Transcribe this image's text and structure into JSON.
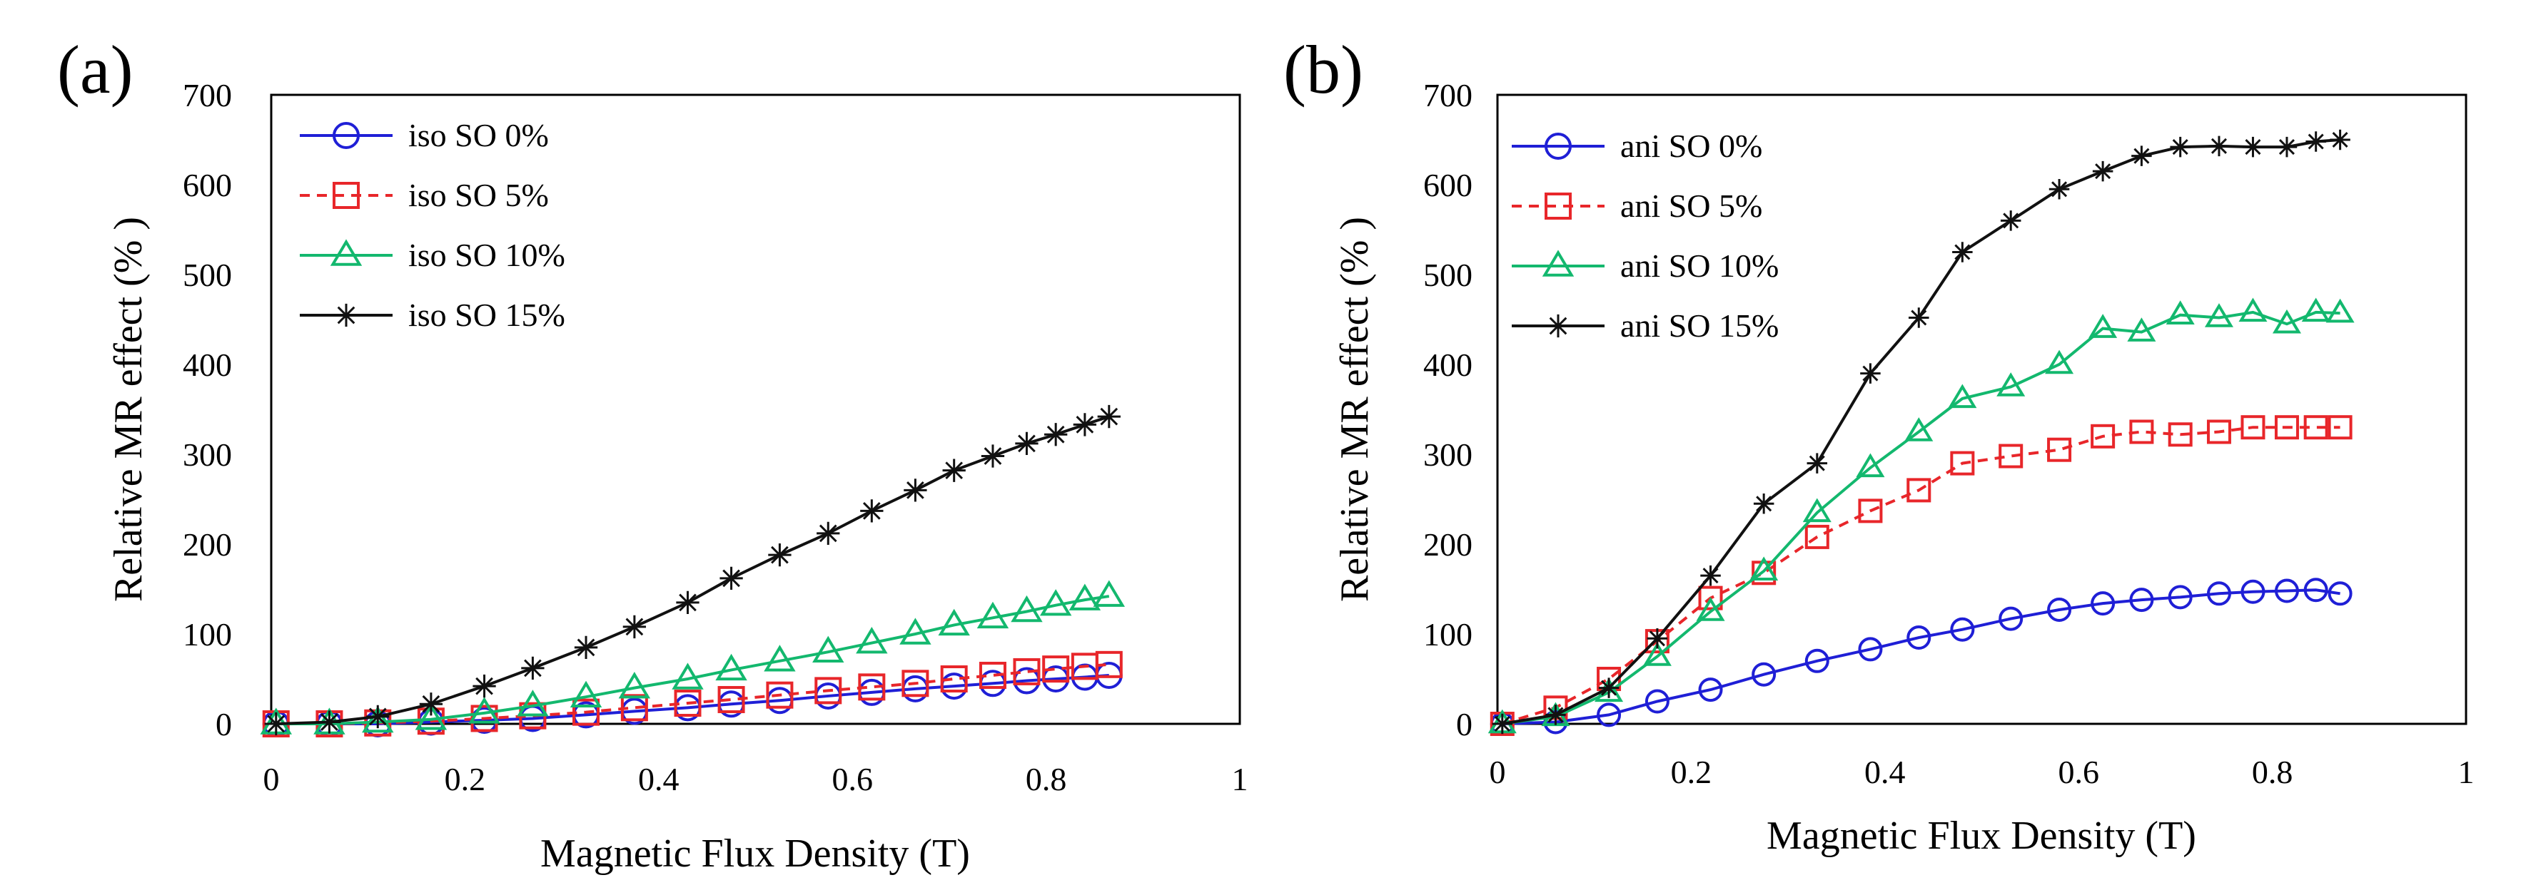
{
  "chart_data": [
    {
      "type": "line",
      "panel_label": "(a)",
      "xlabel": "Magnetic Flux Density (T)",
      "ylabel": "Relative MR effect (% )",
      "xlim": [
        0,
        1
      ],
      "ylim": [
        0,
        700
      ],
      "xticks": [
        "0",
        "0.2",
        "0.4",
        "0.6",
        "0.8",
        "1"
      ],
      "yticks": [
        "0",
        "100",
        "200",
        "300",
        "400",
        "500",
        "600",
        "700"
      ],
      "grid": false,
      "legend_position": "top-left",
      "series": [
        {
          "name": "iso SO 0%",
          "color": "#1f1fd6",
          "marker": "circle",
          "dash": false,
          "x": [
            0.005,
            0.06,
            0.11,
            0.165,
            0.22,
            0.27,
            0.325,
            0.375,
            0.43,
            0.475,
            0.525,
            0.575,
            0.62,
            0.665,
            0.705,
            0.745,
            0.78,
            0.81,
            0.84,
            0.865
          ],
          "y": [
            0,
            0,
            0,
            2,
            4,
            6,
            10,
            14,
            18,
            22,
            26,
            31,
            35,
            39,
            42,
            45,
            48,
            50,
            52,
            54
          ]
        },
        {
          "name": "iso SO 5%",
          "color": "#e8262a",
          "marker": "square",
          "dash": true,
          "x": [
            0.005,
            0.06,
            0.11,
            0.165,
            0.22,
            0.27,
            0.325,
            0.375,
            0.43,
            0.475,
            0.525,
            0.575,
            0.62,
            0.665,
            0.705,
            0.745,
            0.78,
            0.81,
            0.84,
            0.865
          ],
          "y": [
            0,
            0,
            1,
            3,
            6,
            9,
            13,
            18,
            23,
            27,
            32,
            37,
            41,
            45,
            50,
            54,
            58,
            61,
            64,
            66
          ]
        },
        {
          "name": "iso SO 10%",
          "color": "#13b86e",
          "marker": "triangle",
          "dash": false,
          "x": [
            0.005,
            0.06,
            0.11,
            0.165,
            0.22,
            0.27,
            0.325,
            0.375,
            0.43,
            0.475,
            0.525,
            0.575,
            0.62,
            0.665,
            0.705,
            0.745,
            0.78,
            0.81,
            0.84,
            0.865
          ],
          "y": [
            0,
            0,
            2,
            5,
            12,
            20,
            30,
            40,
            50,
            60,
            70,
            80,
            90,
            100,
            110,
            118,
            125,
            132,
            138,
            142
          ]
        },
        {
          "name": "iso SO 15%",
          "color": "#111111",
          "marker": "star",
          "dash": false,
          "x": [
            0.005,
            0.06,
            0.11,
            0.165,
            0.22,
            0.27,
            0.325,
            0.375,
            0.43,
            0.475,
            0.525,
            0.575,
            0.62,
            0.665,
            0.705,
            0.745,
            0.78,
            0.81,
            0.84,
            0.865
          ],
          "y": [
            0,
            2,
            8,
            22,
            42,
            62,
            85,
            108,
            135,
            162,
            188,
            212,
            237,
            260,
            282,
            298,
            312,
            322,
            333,
            342
          ]
        }
      ]
    },
    {
      "type": "line",
      "panel_label": "(b)",
      "xlabel": "Magnetic Flux Density (T)",
      "ylabel": "Relative MR effect (% )",
      "xlim": [
        0,
        1
      ],
      "ylim": [
        0,
        700
      ],
      "xticks": [
        "0",
        "0.2",
        "0.4",
        "0.6",
        "0.8",
        "1"
      ],
      "yticks": [
        "0",
        "100",
        "200",
        "300",
        "400",
        "500",
        "600",
        "700"
      ],
      "grid": false,
      "legend_position": "top-left",
      "series": [
        {
          "name": "ani SO 0%",
          "color": "#1f1fd6",
          "marker": "circle",
          "dash": false,
          "x": [
            0.005,
            0.06,
            0.115,
            0.165,
            0.22,
            0.275,
            0.33,
            0.385,
            0.435,
            0.48,
            0.53,
            0.58,
            0.625,
            0.665,
            0.705,
            0.745,
            0.78,
            0.815,
            0.845,
            0.87
          ],
          "y": [
            0,
            2,
            10,
            25,
            38,
            55,
            70,
            83,
            96,
            105,
            117,
            127,
            134,
            138,
            141,
            145,
            147,
            148,
            149,
            145
          ]
        },
        {
          "name": "ani SO 5%",
          "color": "#e8262a",
          "marker": "square",
          "dash": true,
          "x": [
            0.005,
            0.06,
            0.115,
            0.165,
            0.22,
            0.275,
            0.33,
            0.385,
            0.435,
            0.48,
            0.53,
            0.58,
            0.625,
            0.665,
            0.705,
            0.745,
            0.78,
            0.815,
            0.845,
            0.87
          ],
          "y": [
            0,
            18,
            50,
            92,
            140,
            168,
            208,
            237,
            260,
            290,
            298,
            305,
            320,
            325,
            322,
            325,
            330,
            330,
            330,
            330
          ]
        },
        {
          "name": "ani SO 10%",
          "color": "#13b86e",
          "marker": "triangle",
          "dash": false,
          "x": [
            0.005,
            0.06,
            0.115,
            0.165,
            0.22,
            0.275,
            0.33,
            0.385,
            0.435,
            0.48,
            0.53,
            0.58,
            0.625,
            0.665,
            0.705,
            0.745,
            0.78,
            0.815,
            0.845,
            0.87
          ],
          "y": [
            0,
            8,
            35,
            75,
            125,
            170,
            235,
            285,
            325,
            362,
            375,
            400,
            440,
            436,
            455,
            452,
            458,
            445,
            458,
            457
          ]
        },
        {
          "name": "ani SO 15%",
          "color": "#111111",
          "marker": "star",
          "dash": false,
          "x": [
            0.005,
            0.06,
            0.115,
            0.165,
            0.22,
            0.275,
            0.33,
            0.385,
            0.435,
            0.48,
            0.53,
            0.58,
            0.625,
            0.665,
            0.705,
            0.745,
            0.78,
            0.815,
            0.845,
            0.87
          ],
          "y": [
            0,
            10,
            40,
            95,
            165,
            245,
            290,
            390,
            452,
            525,
            560,
            595,
            615,
            632,
            642,
            643,
            642,
            642,
            648,
            650
          ]
        }
      ]
    }
  ]
}
